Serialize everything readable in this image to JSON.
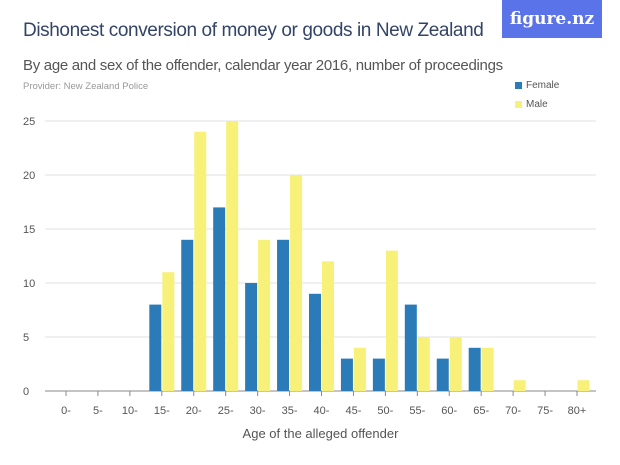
{
  "header": {
    "title": "Dishonest conversion of money or goods in New Zealand",
    "subtitle": "By age and sex of the offender, calendar year 2016, number of proceedings",
    "provider": "Provider: New Zealand Police",
    "logo": "figure.nz"
  },
  "chart_data": {
    "type": "bar",
    "title": "Dishonest conversion of money or goods in New Zealand",
    "xlabel": "Age of the alleged offender",
    "ylabel": "",
    "ylim": [
      0,
      25
    ],
    "yticks": [
      0,
      5,
      10,
      15,
      20,
      25
    ],
    "grid": true,
    "legend_position": "top-right",
    "categories": [
      "0-",
      "5-",
      "10-",
      "15-",
      "20-",
      "25-",
      "30-",
      "35-",
      "40-",
      "45-",
      "50-",
      "55-",
      "60-",
      "65-",
      "70-",
      "75-",
      "80+"
    ],
    "series": [
      {
        "name": "Female",
        "color": "#2b7bb9",
        "values": [
          0,
          0,
          0,
          8,
          14,
          17,
          10,
          14,
          9,
          3,
          3,
          8,
          3,
          4,
          0,
          0,
          0
        ]
      },
      {
        "name": "Male",
        "color": "#f7f17a",
        "values": [
          0,
          0,
          0,
          11,
          24,
          25,
          14,
          20,
          12,
          4,
          13,
          5,
          5,
          4,
          1,
          0,
          1
        ]
      }
    ]
  }
}
